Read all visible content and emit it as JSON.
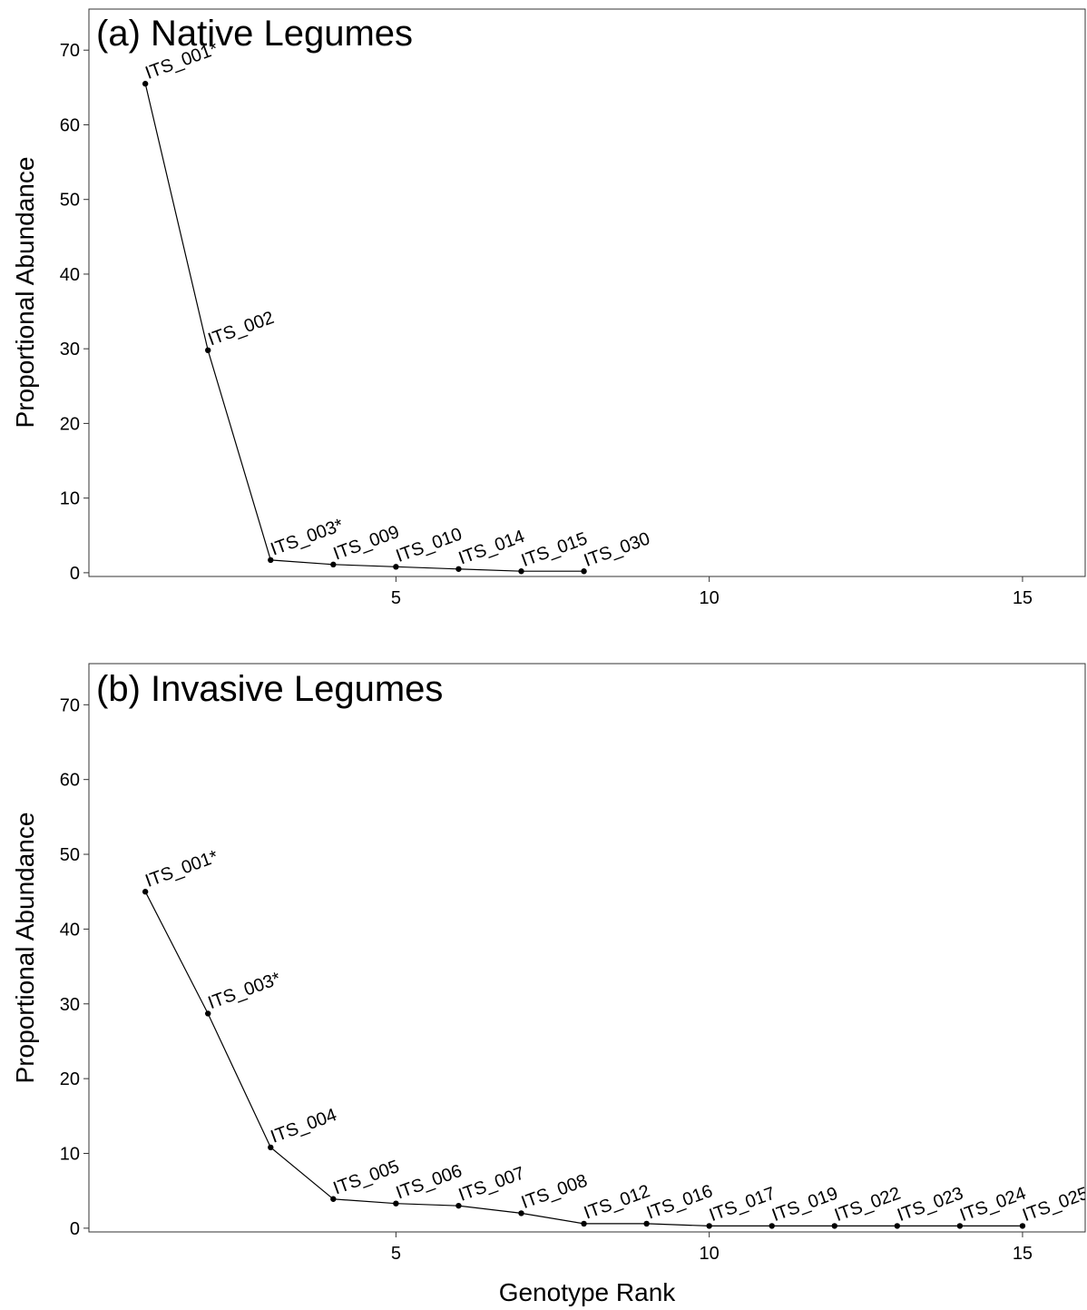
{
  "x_axis_label": "Genotype Rank",
  "chart_data": [
    {
      "type": "line",
      "title": "(a) Native Legumes",
      "xlabel": "",
      "ylabel": "Proportional Abundance",
      "xlim": [
        0.1,
        16.0
      ],
      "ylim": [
        -0.5,
        75.5
      ],
      "xticks": [
        5,
        10,
        15
      ],
      "yticks": [
        0,
        10,
        20,
        30,
        40,
        50,
        60,
        70
      ],
      "grid": false,
      "points": [
        {
          "x": 1,
          "y": 65.5,
          "label": "ITS_001*"
        },
        {
          "x": 2,
          "y": 29.8,
          "label": "ITS_002"
        },
        {
          "x": 3,
          "y": 1.7,
          "label": "ITS_003*"
        },
        {
          "x": 4,
          "y": 1.1,
          "label": "ITS_009"
        },
        {
          "x": 5,
          "y": 0.8,
          "label": "ITS_010"
        },
        {
          "x": 6,
          "y": 0.5,
          "label": "ITS_014"
        },
        {
          "x": 7,
          "y": 0.2,
          "label": "ITS_015"
        },
        {
          "x": 8,
          "y": 0.2,
          "label": "ITS_030"
        }
      ]
    },
    {
      "type": "line",
      "title": "(b) Invasive Legumes",
      "xlabel": "Genotype Rank",
      "ylabel": "Proportional Abundance",
      "xlim": [
        0.1,
        16.0
      ],
      "ylim": [
        -0.5,
        75.5
      ],
      "xticks": [
        5,
        10,
        15
      ],
      "yticks": [
        0,
        10,
        20,
        30,
        40,
        50,
        60,
        70
      ],
      "grid": false,
      "points": [
        {
          "x": 1,
          "y": 45.0,
          "label": "ITS_001*"
        },
        {
          "x": 2,
          "y": 28.7,
          "label": "ITS_003*"
        },
        {
          "x": 3,
          "y": 10.8,
          "label": "ITS_004"
        },
        {
          "x": 4,
          "y": 3.9,
          "label": "ITS_005"
        },
        {
          "x": 5,
          "y": 3.3,
          "label": "ITS_006"
        },
        {
          "x": 6,
          "y": 3.0,
          "label": "ITS_007"
        },
        {
          "x": 7,
          "y": 2.0,
          "label": "ITS_008"
        },
        {
          "x": 8,
          "y": 0.6,
          "label": "ITS_012"
        },
        {
          "x": 9,
          "y": 0.6,
          "label": "ITS_016"
        },
        {
          "x": 10,
          "y": 0.3,
          "label": "ITS_017"
        },
        {
          "x": 11,
          "y": 0.3,
          "label": "ITS_019"
        },
        {
          "x": 12,
          "y": 0.3,
          "label": "ITS_022"
        },
        {
          "x": 13,
          "y": 0.3,
          "label": "ITS_023"
        },
        {
          "x": 14,
          "y": 0.3,
          "label": "ITS_024"
        },
        {
          "x": 15,
          "y": 0.3,
          "label": "ITS_025"
        }
      ]
    }
  ]
}
